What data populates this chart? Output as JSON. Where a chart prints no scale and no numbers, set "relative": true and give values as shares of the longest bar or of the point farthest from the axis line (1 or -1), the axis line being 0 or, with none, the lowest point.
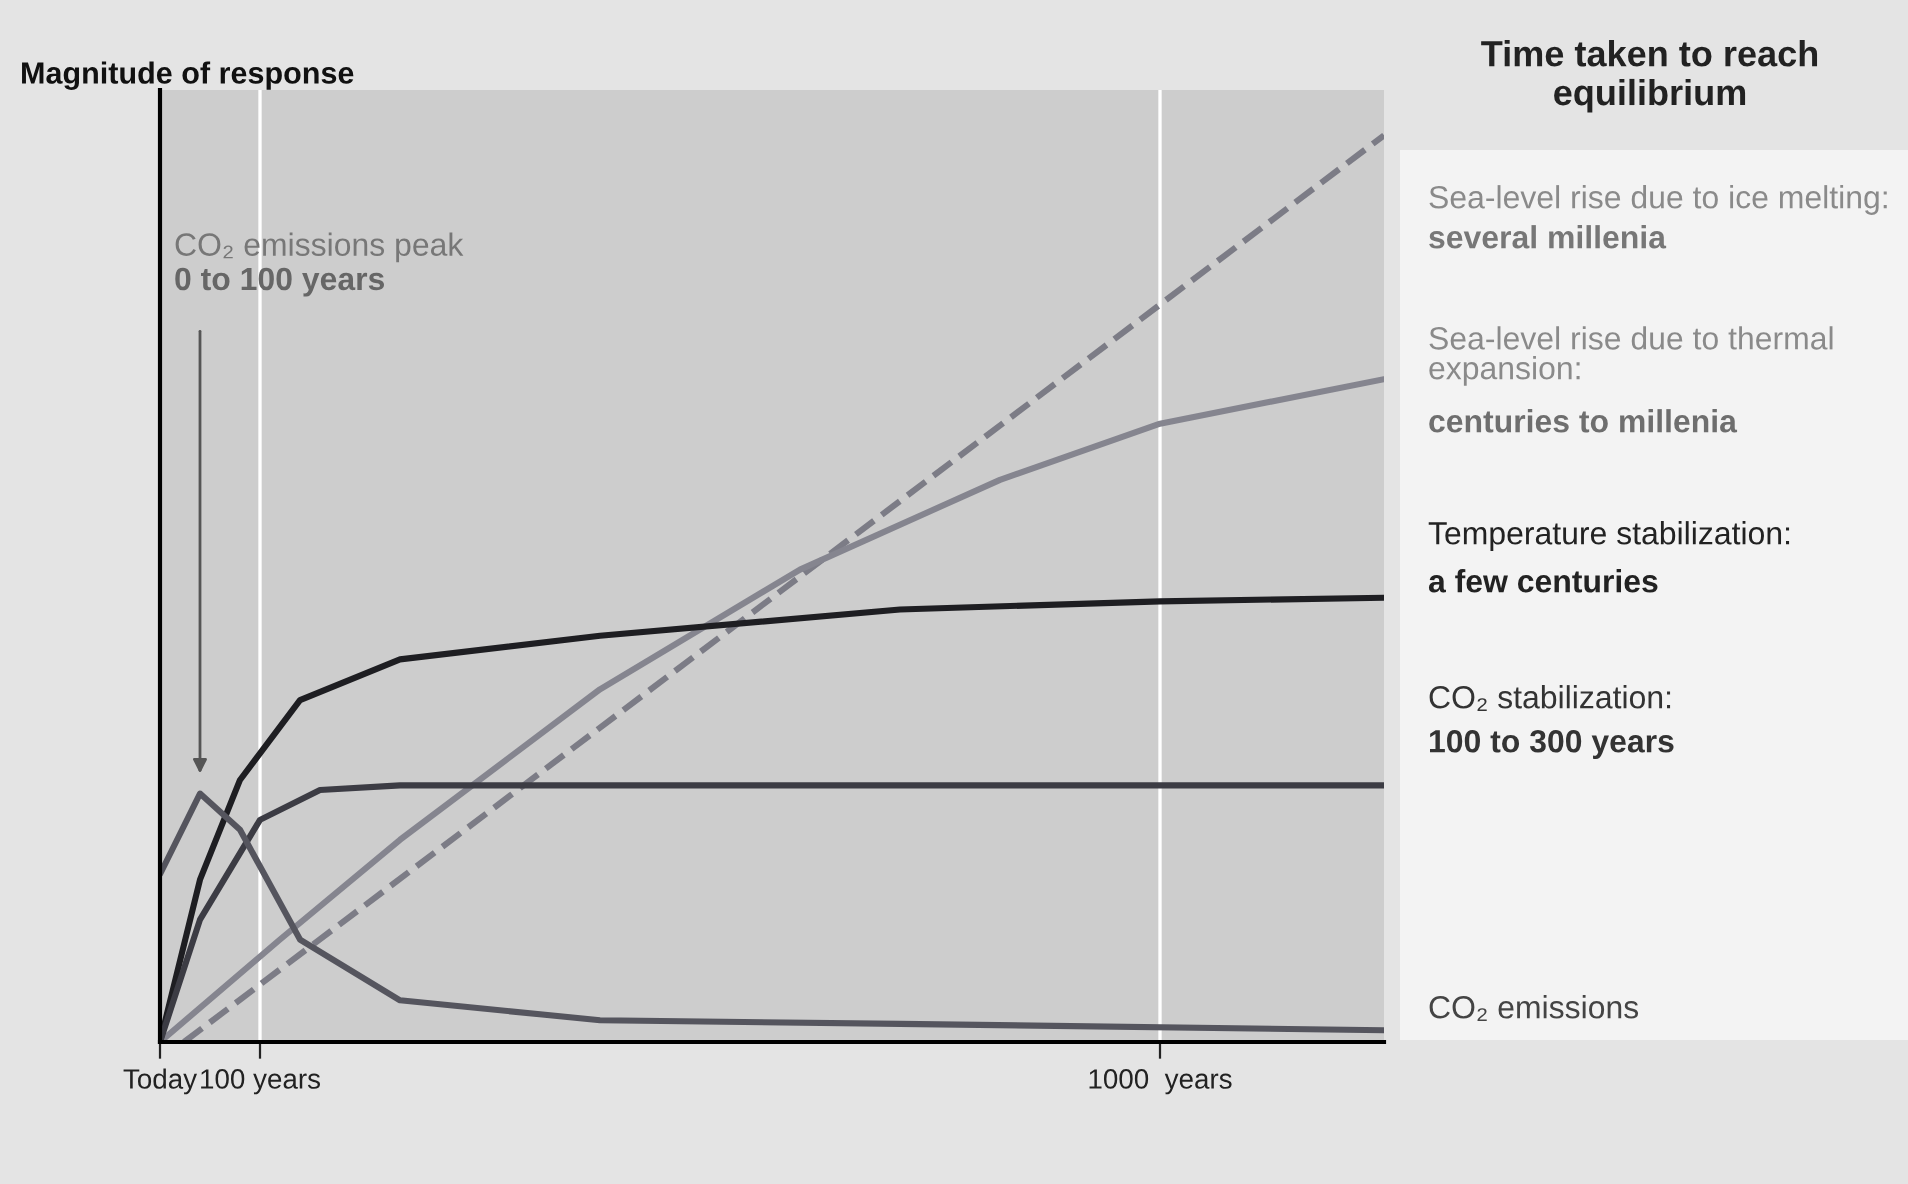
{
  "chart_data": {
    "type": "line",
    "relative": true,
    "ylabel": "Magnitude of response",
    "legend_title": "Time taken to reach equilibrium",
    "xlim": [
      0,
      1224
    ],
    "xticks": [
      {
        "value": 0,
        "label": "Today"
      },
      {
        "value": 100,
        "label": "100 years"
      },
      {
        "value": 1000,
        "label": "1000  years"
      }
    ],
    "grid": "x",
    "marker": "none",
    "series": [
      {
        "name": "Sea-level rise due to ice melting:",
        "color": "#7c7c86",
        "line_style": "dashed",
        "x": [
          24,
          624,
          1224
        ],
        "values": [
          0,
          0.5,
          1
        ]
      },
      {
        "name": "Sea-level rise due to thermal expansion:",
        "color": "#85858f",
        "line_style": "solid",
        "x": [
          0,
          120,
          240,
          440,
          640,
          840,
          1000,
          1224
        ],
        "values": [
          0,
          0.113,
          0.223,
          0.389,
          0.521,
          0.62,
          0.682,
          0.731
        ]
      },
      {
        "name": "Temperature stabilization:",
        "color": "#1e1e22",
        "line_style": "solid",
        "x": [
          0,
          40,
          80,
          140,
          240,
          440,
          740,
          1000,
          1224
        ],
        "values": [
          0,
          0.179,
          0.289,
          0.377,
          0.422,
          0.448,
          0.477,
          0.486,
          0.49
        ]
      },
      {
        "name": "CO₂ stabilization:",
        "color": "#3c3c44",
        "line_style": "solid",
        "x": [
          0,
          40,
          100,
          160,
          240,
          1224
        ],
        "values": [
          0,
          0.135,
          0.245,
          0.278,
          0.283,
          0.283
        ]
      },
      {
        "name": "CO₂ emissions",
        "color": "#55555e",
        "line_style": "solid",
        "x": [
          0,
          40,
          80,
          140,
          240,
          440,
          740,
          1224
        ],
        "values": [
          0.185,
          0.274,
          0.234,
          0.113,
          0.046,
          0.024,
          0.02,
          0.013
        ]
      }
    ],
    "annotations": [
      "several millenia",
      "centuries to millenia",
      "a few centuries",
      "100 to 300 years",
      "CO₂ emissions peak",
      "0 to 100 years"
    ]
  }
}
